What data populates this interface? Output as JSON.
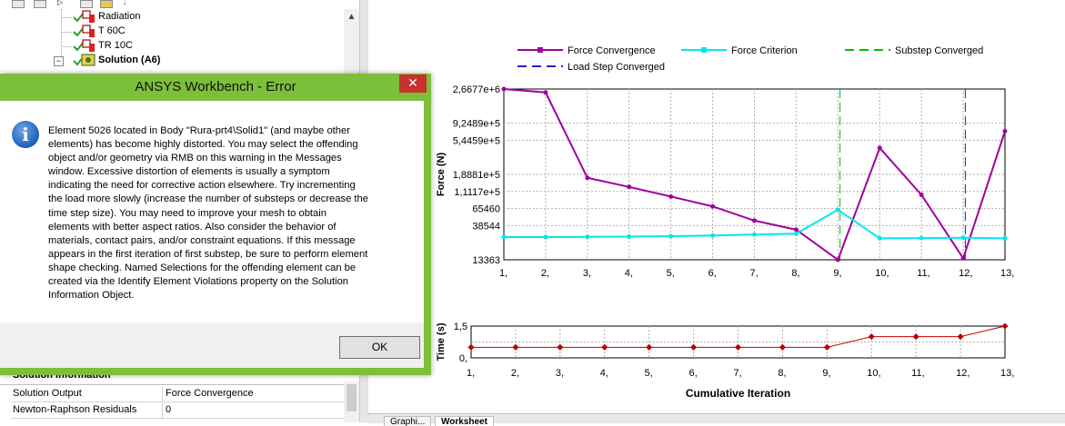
{
  "tree": {
    "items": [
      {
        "label": "Radiation",
        "bold": false
      },
      {
        "label": "T 60C",
        "bold": false
      },
      {
        "label": "TR 10C",
        "bold": false
      },
      {
        "label": "Solution (A6)",
        "bold": true
      }
    ],
    "expand_icon": "minus-box-icon",
    "scroll_up_icon": "▲"
  },
  "details": {
    "header": "Solution Information",
    "rows": [
      {
        "key": "Solution Output",
        "value": "Force Convergence"
      },
      {
        "key": "Newton-Raphson Residuals",
        "value": "0"
      }
    ],
    "close_icon": "×"
  },
  "bottom_tabs": [
    "Graphi...",
    "Worksheet"
  ],
  "dialog": {
    "title": "ANSYS Workbench - Error",
    "close_icon": "✕",
    "info_icon": "i",
    "message_lines": [
      "Element 5026 located in Body \"Rura-prt4\\Solid1\" (and maybe other",
      "elements) has become highly distorted.  You may select the offending",
      "object and/or geometry via RMB on this warning in the Messages",
      "window.  Excessive distortion of elements is usually a symptom",
      "indicating the need for corrective action elsewhere.  Try incrementing",
      "the load more slowly (increase the number of substeps or decrease the",
      "time step size).  You may need to improve your mesh to obtain",
      "elements with better aspect ratios.  Also consider the behavior of",
      "materials, contact pairs, and/or constraint equations.  If this message",
      "appears in the first iteration of first substep, be sure to perform element",
      "shape checking. Named Selections for the offending element can be",
      "created via the Identify Element Violations property on the Solution",
      "Information Object."
    ],
    "ok_label": "OK"
  },
  "chart_data": [
    {
      "type": "line",
      "ylabel": "Force (N)",
      "legend": [
        {
          "name": "Force Convergence",
          "color": "#a000a0",
          "style": "solid-marker"
        },
        {
          "name": "Force Criterion",
          "color": "#00e8e8",
          "style": "solid-marker"
        },
        {
          "name": "Substep Converged",
          "color": "#00c000",
          "style": "dashed"
        },
        {
          "name": "Load Step Converged",
          "color": "#2020c0",
          "style": "dashed"
        }
      ],
      "x_ticks": [
        "1,",
        "2,",
        "3,",
        "4,",
        "5,",
        "6,",
        "7,",
        "8,",
        "9,",
        "10,",
        "11,",
        "12,",
        "13,"
      ],
      "y_tick_labels": [
        "2,6677e+6",
        "9,2489e+5",
        "5,4459e+5",
        "1,8881e+5",
        "1,1117e+5",
        "65460",
        "38544",
        "13363"
      ],
      "y_scale": "log",
      "ylim": [
        13363,
        2667700
      ],
      "grid": true,
      "series": [
        {
          "name": "Force Convergence",
          "x": [
            1,
            2,
            3,
            4,
            5,
            6,
            7,
            8,
            9,
            10,
            11,
            12,
            13
          ],
          "values": [
            2667700,
            2400000,
            170000,
            128000,
            95000,
            70000,
            45000,
            34000,
            13363,
            430000,
            100000,
            14000,
            720000
          ]
        },
        {
          "name": "Force Criterion",
          "x": [
            1,
            2,
            3,
            4,
            5,
            6,
            7,
            8,
            9,
            10,
            11,
            12,
            13
          ],
          "values": [
            27000,
            27000,
            27200,
            27400,
            27800,
            28400,
            29200,
            30000,
            63000,
            26000,
            26200,
            26500,
            26000
          ]
        },
        {
          "name": "Substep Converged",
          "x_lines": [
            9.05
          ]
        },
        {
          "name": "Load Step Converged",
          "x_lines": [
            12.05
          ]
        }
      ]
    },
    {
      "type": "line",
      "ylabel": "Time (s)",
      "xlabel": "Cumulative Iteration",
      "x_ticks": [
        "1,",
        "2,",
        "3,",
        "4,",
        "5,",
        "6,",
        "7,",
        "8,",
        "9,",
        "10,",
        "11,",
        "12,",
        "13,"
      ],
      "y_tick_labels": [
        "1,5",
        "0,"
      ],
      "ylim": [
        0,
        1.5
      ],
      "grid": true,
      "series": [
        {
          "name": "Time",
          "color": "#c00000",
          "x": [
            1,
            2,
            3,
            4,
            5,
            6,
            7,
            8,
            9,
            10,
            11,
            12,
            13
          ],
          "values": [
            0.5,
            0.5,
            0.5,
            0.5,
            0.5,
            0.5,
            0.5,
            0.5,
            0.5,
            1.0,
            1.0,
            1.0,
            1.5
          ]
        }
      ]
    }
  ]
}
